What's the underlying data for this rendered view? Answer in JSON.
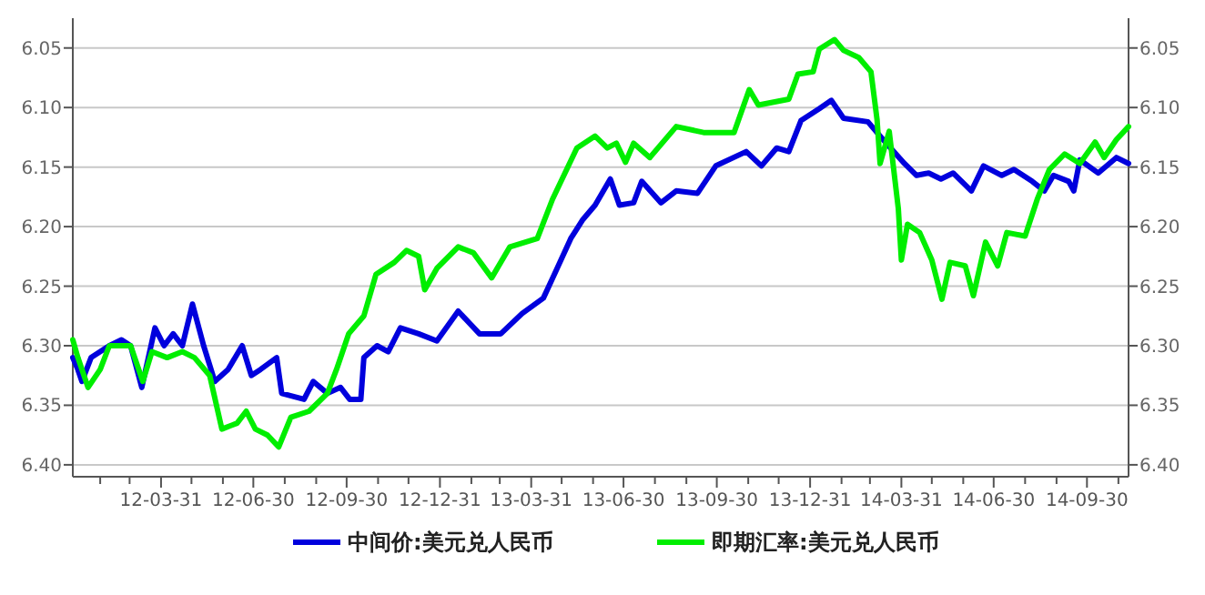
{
  "chart_data": {
    "type": "line",
    "legend": "bottom",
    "grid": "y",
    "line_style": "solid",
    "marker": "none",
    "xlim": [
      "2012-01-04",
      "2014-11-10"
    ],
    "xticks": [
      {
        "value": "2012-01-31",
        "label": null
      },
      {
        "value": "2012-02-29",
        "label": null
      },
      {
        "value": "2012-03-31",
        "label": "12-03-31"
      },
      {
        "value": "2012-04-30",
        "label": null
      },
      {
        "value": "2012-05-31",
        "label": null
      },
      {
        "value": "2012-06-30",
        "label": "12-06-30"
      },
      {
        "value": "2012-07-31",
        "label": null
      },
      {
        "value": "2012-08-31",
        "label": null
      },
      {
        "value": "2012-09-30",
        "label": "12-09-30"
      },
      {
        "value": "2012-10-31",
        "label": null
      },
      {
        "value": "2012-11-30",
        "label": null
      },
      {
        "value": "2012-12-31",
        "label": "12-12-31"
      },
      {
        "value": "2013-01-31",
        "label": null
      },
      {
        "value": "2013-02-28",
        "label": null
      },
      {
        "value": "2013-03-31",
        "label": "13-03-31"
      },
      {
        "value": "2013-04-30",
        "label": null
      },
      {
        "value": "2013-05-31",
        "label": null
      },
      {
        "value": "2013-06-30",
        "label": "13-06-30"
      },
      {
        "value": "2013-07-31",
        "label": null
      },
      {
        "value": "2013-08-31",
        "label": null
      },
      {
        "value": "2013-09-30",
        "label": "13-09-30"
      },
      {
        "value": "2013-10-31",
        "label": null
      },
      {
        "value": "2013-11-30",
        "label": null
      },
      {
        "value": "2013-12-31",
        "label": "13-12-31"
      },
      {
        "value": "2014-01-31",
        "label": null
      },
      {
        "value": "2014-02-28",
        "label": null
      },
      {
        "value": "2014-03-31",
        "label": "14-03-31"
      },
      {
        "value": "2014-04-30",
        "label": null
      },
      {
        "value": "2014-05-31",
        "label": null
      },
      {
        "value": "2014-06-30",
        "label": "14-06-30"
      },
      {
        "value": "2014-07-31",
        "label": null
      },
      {
        "value": "2014-08-31",
        "label": null
      },
      {
        "value": "2014-09-30",
        "label": "14-09-30"
      },
      {
        "value": "2014-10-31",
        "label": null
      }
    ],
    "ylim": [
      6.41,
      6.025
    ],
    "yticks": [
      {
        "value": 6.05,
        "label": "6.05"
      },
      {
        "value": 6.1,
        "label": "6.10"
      },
      {
        "value": 6.15,
        "label": "6.15"
      },
      {
        "value": 6.2,
        "label": "6.20"
      },
      {
        "value": 6.25,
        "label": "6.25"
      },
      {
        "value": 6.3,
        "label": "6.30"
      },
      {
        "value": 6.35,
        "label": "6.35"
      },
      {
        "value": 6.4,
        "label": "6.40"
      }
    ],
    "y2lim": [
      6.41,
      6.025
    ],
    "y2ticks": [
      {
        "value": 6.05,
        "label": "6.05"
      },
      {
        "value": 6.1,
        "label": "6.10"
      },
      {
        "value": 6.15,
        "label": "6.15"
      },
      {
        "value": 6.2,
        "label": "6.20"
      },
      {
        "value": 6.25,
        "label": "6.25"
      },
      {
        "value": 6.3,
        "label": "6.30"
      },
      {
        "value": 6.35,
        "label": "6.35"
      },
      {
        "value": 6.4,
        "label": "6.40"
      }
    ],
    "series": [
      {
        "name": "中间价:美元兑人民币",
        "color": "#0000dd",
        "x": [
          "2012-01-04",
          "2012-01-09",
          "2012-01-13",
          "2012-01-22",
          "2012-02-09",
          "2012-02-21",
          "2012-03-01",
          "2012-03-12",
          "2012-03-25",
          "2012-04-03",
          "2012-04-12",
          "2012-04-21",
          "2012-05-01",
          "2012-05-12",
          "2012-05-23",
          "2012-06-05",
          "2012-06-19",
          "2012-06-28",
          "2012-07-07",
          "2012-07-23",
          "2012-07-28",
          "2012-08-19",
          "2012-08-28",
          "2012-09-11",
          "2012-09-24",
          "2012-10-03",
          "2012-10-14",
          "2012-10-17",
          "2012-10-30",
          "2012-11-10",
          "2012-11-22",
          "2012-12-10",
          "2012-12-28",
          "2013-01-18",
          "2013-02-08",
          "2013-03-01",
          "2013-03-22",
          "2013-04-12",
          "2013-04-24",
          "2013-05-09",
          "2013-05-21",
          "2013-06-02",
          "2013-06-17",
          "2013-06-26",
          "2013-07-10",
          "2013-07-18",
          "2013-08-06",
          "2013-08-21",
          "2013-09-11",
          "2013-09-29",
          "2013-10-29",
          "2013-11-13",
          "2013-11-28",
          "2013-12-10",
          "2013-12-22",
          "2014-01-09",
          "2014-01-21",
          "2014-02-02",
          "2014-02-26",
          "2014-03-13",
          "2014-04-03",
          "2014-04-15",
          "2014-04-27",
          "2014-05-09",
          "2014-05-21",
          "2014-06-08",
          "2014-06-20",
          "2014-07-08",
          "2014-07-20",
          "2014-08-07",
          "2014-08-19",
          "2014-08-28",
          "2014-09-12",
          "2014-09-17",
          "2014-09-23",
          "2014-10-11",
          "2014-10-29",
          "2014-11-10"
        ],
        "values": [
          6.31,
          6.32,
          6.33,
          6.31,
          6.3,
          6.295,
          6.3,
          6.335,
          6.285,
          6.3,
          6.29,
          6.3,
          6.265,
          6.3,
          6.33,
          6.32,
          6.3,
          6.325,
          6.32,
          6.31,
          6.34,
          6.345,
          6.33,
          6.34,
          6.335,
          6.345,
          6.345,
          6.31,
          6.3,
          6.305,
          6.285,
          6.29,
          6.296,
          6.271,
          6.29,
          6.29,
          6.273,
          6.26,
          6.238,
          6.21,
          6.194,
          6.182,
          6.16,
          6.182,
          6.18,
          6.162,
          6.18,
          6.17,
          6.172,
          6.149,
          6.137,
          6.149,
          6.134,
          6.137,
          6.111,
          6.101,
          6.094,
          6.109,
          6.112,
          6.127,
          6.147,
          6.157,
          6.155,
          6.16,
          6.155,
          6.17,
          6.149,
          6.157,
          6.152,
          6.162,
          6.17,
          6.157,
          6.162,
          6.17,
          6.144,
          6.155,
          6.142,
          6.147
        ]
      },
      {
        "name": "即期汇率:美元兑人民币",
        "color": "#00ee00",
        "x": [
          "2012-01-04",
          "2012-01-09",
          "2012-01-19",
          "2012-01-31",
          "2012-02-09",
          "2012-03-01",
          "2012-03-13",
          "2012-03-22",
          "2012-04-06",
          "2012-04-21",
          "2012-05-03",
          "2012-05-18",
          "2012-05-30",
          "2012-06-14",
          "2012-06-23",
          "2012-07-02",
          "2012-07-14",
          "2012-07-25",
          "2012-08-06",
          "2012-08-24",
          "2012-09-11",
          "2012-09-20",
          "2012-10-02",
          "2012-10-17",
          "2012-10-29",
          "2012-11-16",
          "2012-11-28",
          "2012-12-10",
          "2012-12-16",
          "2012-12-28",
          "2013-01-18",
          "2013-02-02",
          "2013-02-20",
          "2013-03-10",
          "2013-04-06",
          "2013-04-21",
          "2013-05-15",
          "2013-06-02",
          "2013-06-14",
          "2013-06-23",
          "2013-07-02",
          "2013-07-10",
          "2013-07-26",
          "2013-08-21",
          "2013-09-17",
          "2013-10-17",
          "2013-11-01",
          "2013-11-10",
          "2013-12-10",
          "2013-12-19",
          "2014-01-03",
          "2014-01-09",
          "2014-01-24",
          "2014-02-02",
          "2014-02-17",
          "2014-03-01",
          "2014-03-07",
          "2014-03-10",
          "2014-03-19",
          "2014-03-28",
          "2014-03-31",
          "2014-04-06",
          "2014-04-18",
          "2014-04-30",
          "2014-05-10",
          "2014-05-18",
          "2014-06-02",
          "2014-06-10",
          "2014-06-22",
          "2014-07-04",
          "2014-07-13",
          "2014-07-31",
          "2014-08-12",
          "2014-08-24",
          "2014-09-08",
          "2014-09-23",
          "2014-10-08",
          "2014-10-17",
          "2014-10-29",
          "2014-11-10"
        ],
        "values": [
          6.295,
          6.31,
          6.335,
          6.32,
          6.3,
          6.3,
          6.33,
          6.305,
          6.31,
          6.305,
          6.31,
          6.325,
          6.37,
          6.365,
          6.355,
          6.37,
          6.375,
          6.385,
          6.36,
          6.355,
          6.34,
          6.32,
          6.29,
          6.275,
          6.24,
          6.23,
          6.22,
          6.225,
          6.253,
          6.235,
          6.217,
          6.222,
          6.243,
          6.217,
          6.21,
          6.177,
          6.134,
          6.124,
          6.134,
          6.13,
          6.146,
          6.13,
          6.142,
          6.116,
          6.121,
          6.121,
          6.085,
          6.098,
          6.093,
          6.072,
          6.07,
          6.051,
          6.043,
          6.052,
          6.058,
          6.07,
          6.11,
          6.147,
          6.12,
          6.185,
          6.228,
          6.198,
          6.205,
          6.228,
          6.261,
          6.23,
          6.233,
          6.258,
          6.213,
          6.233,
          6.205,
          6.208,
          6.177,
          6.152,
          6.139,
          6.147,
          6.129,
          6.142,
          6.127,
          6.116
        ]
      }
    ]
  }
}
